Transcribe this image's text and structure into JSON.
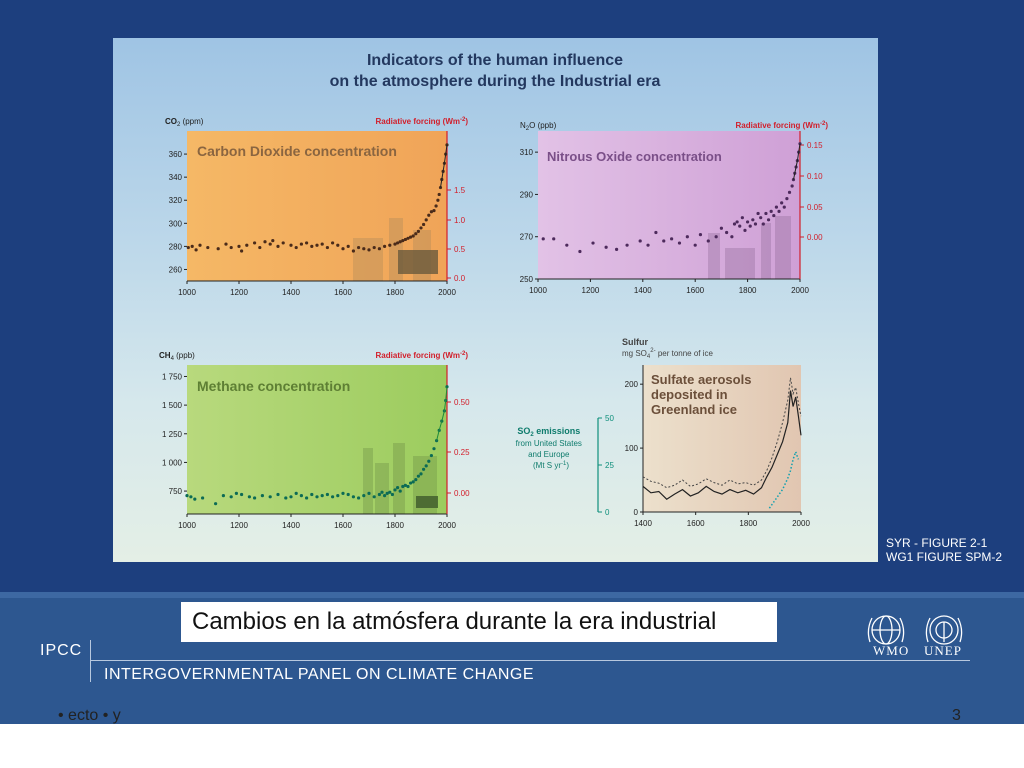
{
  "figure": {
    "title_line1": "Indicators of the human influence",
    "title_line2": "on the atmosphere during the Industrial era",
    "ref_line1": "SYR - FIGURE 2-1",
    "ref_line2": "WG1 FIGURE SPM-2"
  },
  "slide": {
    "caption": "Cambios en la atmósfera durante la era industrial",
    "org_short": "IPCC",
    "org_long": "INTERGOVERNMENTAL PANEL ON CLIMATE CHANGE",
    "logo_wmo": "WMO",
    "logo_unep": "UNEP",
    "bottom_left": "• ecto • y",
    "bottom_right": "3"
  },
  "colors": {
    "background": "#1d3f7e",
    "footer": "#2d5790",
    "co2_panel": "#f2b262",
    "n2o_panel": "#d9b3de",
    "ch4_panel": "#a8cf6a",
    "sulfur_panel": "#e7d2bd",
    "forcing_axis": "#d21e2a",
    "so2_axis": "#0f8f7c"
  },
  "chart_data": [
    {
      "type": "scatter",
      "panel": "co2",
      "title": "Carbon Dioxide concentration",
      "ylabel": "CO2 (ppm)",
      "y2label": "Radiative forcing (Wm-2)",
      "xlim": [
        1000,
        2000
      ],
      "ylim": [
        250,
        380
      ],
      "xticks": [
        "1000",
        "1200",
        "1400",
        "1600",
        "1800",
        "2000"
      ],
      "yticks": [
        "360",
        "340",
        "320",
        "300",
        "280",
        "260"
      ],
      "y2ticks": [
        "1.5",
        "1.0",
        "0.5",
        "0.0"
      ],
      "x": [
        1005,
        1020,
        1035,
        1050,
        1080,
        1120,
        1150,
        1170,
        1200,
        1210,
        1230,
        1260,
        1280,
        1300,
        1320,
        1330,
        1350,
        1370,
        1400,
        1420,
        1440,
        1460,
        1480,
        1500,
        1520,
        1540,
        1560,
        1580,
        1600,
        1620,
        1640,
        1660,
        1680,
        1700,
        1720,
        1740,
        1760,
        1780,
        1800,
        1810,
        1820,
        1830,
        1840,
        1850,
        1860,
        1870,
        1880,
        1890,
        1900,
        1910,
        1920,
        1930,
        1940,
        1950,
        1958,
        1965,
        1970,
        1975,
        1980,
        1985,
        1990,
        1995,
        2000
      ],
      "y": [
        279,
        280,
        277,
        281,
        279,
        278,
        282,
        279,
        280,
        276,
        281,
        283,
        279,
        284,
        282,
        285,
        280,
        283,
        281,
        279,
        282,
        283,
        280,
        281,
        282,
        279,
        283,
        281,
        278,
        280,
        276,
        279,
        278,
        277,
        279,
        278,
        280,
        281,
        282,
        283,
        284,
        285,
        286,
        287,
        288,
        289,
        291,
        293,
        296,
        299,
        303,
        307,
        310,
        311,
        315,
        320,
        325,
        331,
        338,
        345,
        352,
        360,
        368
      ]
    },
    {
      "type": "scatter",
      "panel": "n2o",
      "title": "Nitrous Oxide concentration",
      "ylabel": "N2O (ppb)",
      "y2label": "Radiative forcing (Wm-2)",
      "xlim": [
        1000,
        2000
      ],
      "ylim": [
        250,
        320
      ],
      "xticks": [
        "1000",
        "1200",
        "1400",
        "1600",
        "1800",
        "2000"
      ],
      "yticks": [
        "310",
        "290",
        "270",
        "250"
      ],
      "y2ticks": [
        "0.15",
        "0.10",
        "0.05",
        "0.00"
      ],
      "x": [
        1020,
        1060,
        1110,
        1160,
        1210,
        1260,
        1300,
        1340,
        1390,
        1420,
        1450,
        1480,
        1510,
        1540,
        1570,
        1600,
        1620,
        1650,
        1680,
        1700,
        1720,
        1740,
        1750,
        1760,
        1770,
        1780,
        1790,
        1800,
        1810,
        1820,
        1830,
        1840,
        1850,
        1860,
        1870,
        1880,
        1890,
        1900,
        1910,
        1920,
        1930,
        1940,
        1950,
        1960,
        1970,
        1975,
        1980,
        1985,
        1990,
        1995,
        2000
      ],
      "y": [
        269,
        269,
        266,
        263,
        267,
        265,
        264,
        266,
        268,
        266,
        272,
        268,
        269,
        267,
        270,
        266,
        271,
        268,
        270,
        274,
        272,
        270,
        276,
        277,
        275,
        279,
        273,
        277,
        275,
        278,
        276,
        281,
        279,
        276,
        281,
        278,
        282,
        280,
        284,
        282,
        286,
        284,
        288,
        291,
        294,
        297,
        300,
        303,
        306,
        310,
        314
      ]
    },
    {
      "type": "scatter",
      "panel": "ch4",
      "title": "Methane concentration",
      "ylabel": "CH4 (ppb)",
      "y2label": "Radiative forcing (Wm-2)",
      "xlim": [
        1000,
        2000
      ],
      "ylim": [
        550,
        1850
      ],
      "xticks": [
        "1000",
        "1200",
        "1400",
        "1600",
        "1800",
        "2000"
      ],
      "yticks": [
        "1 750",
        "1 500",
        "1 250",
        "1 000",
        "750"
      ],
      "y2ticks": [
        "0.50",
        "0.25",
        "0.00"
      ],
      "x": [
        1000,
        1015,
        1030,
        1060,
        1110,
        1140,
        1170,
        1190,
        1210,
        1240,
        1260,
        1290,
        1320,
        1350,
        1380,
        1400,
        1420,
        1440,
        1460,
        1480,
        1500,
        1520,
        1540,
        1560,
        1580,
        1600,
        1620,
        1640,
        1660,
        1680,
        1700,
        1720,
        1740,
        1750,
        1760,
        1770,
        1780,
        1790,
        1800,
        1810,
        1820,
        1830,
        1840,
        1850,
        1860,
        1870,
        1880,
        1890,
        1900,
        1910,
        1920,
        1930,
        1940,
        1950,
        1960,
        1970,
        1980,
        1990,
        1995,
        2000
      ],
      "y": [
        710,
        700,
        680,
        690,
        640,
        710,
        700,
        730,
        720,
        700,
        690,
        710,
        700,
        720,
        690,
        700,
        730,
        710,
        690,
        720,
        700,
        710,
        720,
        700,
        710,
        730,
        720,
        700,
        690,
        710,
        730,
        700,
        720,
        740,
        710,
        730,
        740,
        720,
        760,
        780,
        750,
        790,
        800,
        790,
        820,
        830,
        850,
        880,
        900,
        940,
        970,
        1010,
        1060,
        1120,
        1190,
        1280,
        1360,
        1450,
        1540,
        1660
      ]
    },
    {
      "type": "line",
      "panel": "sulfur",
      "title": "Sulfate aerosols deposited in Greenland ice",
      "ylabel": "Sulfur",
      "ylabel_unit": "mg SO4 2- per tonne of ice",
      "y2label": "SO2 emissions from United States and Europe (Mt S yr-1)",
      "xlim": [
        1400,
        2000
      ],
      "ylim": [
        0,
        230
      ],
      "y2lim": [
        0,
        50
      ],
      "xticks": [
        "1400",
        "1600",
        "1800",
        "2000"
      ],
      "yticks": [
        "200",
        "100",
        "0"
      ],
      "y2ticks": [
        "50",
        "25",
        "0"
      ],
      "series": [
        {
          "x": [
            1400,
            1430,
            1460,
            1490,
            1520,
            1550,
            1580,
            1610,
            1640,
            1670,
            1700,
            1730,
            1760,
            1790,
            1820,
            1850,
            1870,
            1890,
            1910,
            1930,
            1950,
            1960,
            1970,
            1980,
            1990,
            2000
          ],
          "y": [
            40,
            30,
            32,
            20,
            28,
            35,
            25,
            30,
            40,
            32,
            28,
            35,
            30,
            34,
            28,
            38,
            55,
            70,
            90,
            110,
            140,
            190,
            165,
            180,
            150,
            120
          ]
        },
        {
          "x": [
            1400,
            1430,
            1460,
            1490,
            1520,
            1550,
            1580,
            1610,
            1640,
            1670,
            1700,
            1730,
            1760,
            1790,
            1820,
            1850,
            1870,
            1890,
            1910,
            1930,
            1950,
            1960,
            1970,
            1980,
            1990,
            2000
          ],
          "y": [
            55,
            48,
            45,
            38,
            42,
            50,
            40,
            44,
            52,
            46,
            42,
            50,
            44,
            46,
            42,
            50,
            65,
            85,
            110,
            140,
            175,
            210,
            185,
            195,
            170,
            150
          ]
        },
        {
          "x": [
            1880,
            1890,
            1900,
            1910,
            1920,
            1930,
            1940,
            1950,
            1960,
            1970,
            1975,
            1980,
            1985,
            1990
          ],
          "y": [
            2,
            4,
            6,
            8,
            10,
            12,
            15,
            18,
            22,
            28,
            30,
            32,
            30,
            28
          ]
        }
      ]
    }
  ]
}
